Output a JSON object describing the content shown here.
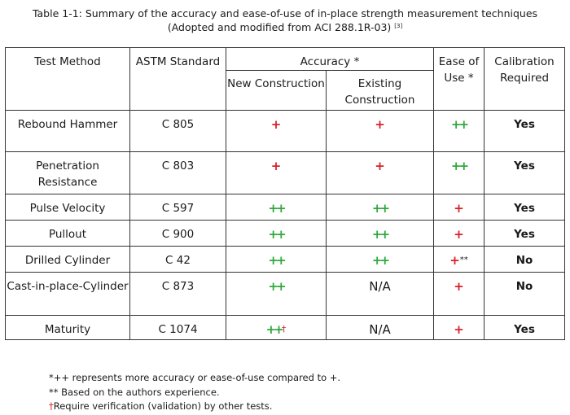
{
  "caption": {
    "line1": "Table 1-1: Summary of the accuracy and ease-of-use of in-place strength measurement techniques",
    "line2": "(Adopted and modified from ACI 288.1R-03)",
    "ref": "[3]"
  },
  "headers": {
    "test_method": "Test Method",
    "astm": "ASTM Standard",
    "accuracy": "Accuracy *",
    "new": "New Construction",
    "existing": "Existing Construction",
    "ease": "Ease of Use *",
    "calibration": "Calibration Required"
  },
  "rows": [
    {
      "method": "Rebound Hammer",
      "astm": "C 805",
      "new": "+",
      "existing": "+",
      "ease": "++",
      "cal": "Yes"
    },
    {
      "method": "Penetration Resistance",
      "astm": "C 803",
      "new": "+",
      "existing": "+",
      "ease": "++",
      "cal": "Yes"
    },
    {
      "method": "Pulse Velocity",
      "astm": "C 597",
      "new": "++",
      "existing": "++",
      "ease": "+",
      "cal": "Yes"
    },
    {
      "method": "Pullout",
      "astm": "C 900",
      "new": "++",
      "existing": "++",
      "ease": "+",
      "cal": "Yes"
    },
    {
      "method": "Drilled Cylinder",
      "astm": "C 42",
      "new": "++",
      "existing": "++",
      "ease": "+",
      "ease_mark": "**",
      "cal": "No"
    },
    {
      "method": "Cast-in-place-Cylinder",
      "astm": "C 873",
      "new": "++",
      "existing": "N/A",
      "ease": "+",
      "cal": "No"
    },
    {
      "method": "Maturity",
      "astm": "C 1074",
      "new": "++",
      "new_mark": "†",
      "existing": "N/A",
      "ease": "+",
      "cal": "Yes"
    }
  ],
  "notes": {
    "n1": "*++ represents more accuracy or ease-of-use compared to +.",
    "n2": "** Based on the authors experience.",
    "n3_mark": "†",
    "n3": "Require verification (validation) by other tests."
  },
  "colors": {
    "plus_red": "#d8202a",
    "plus_green": "#2fa83c"
  }
}
